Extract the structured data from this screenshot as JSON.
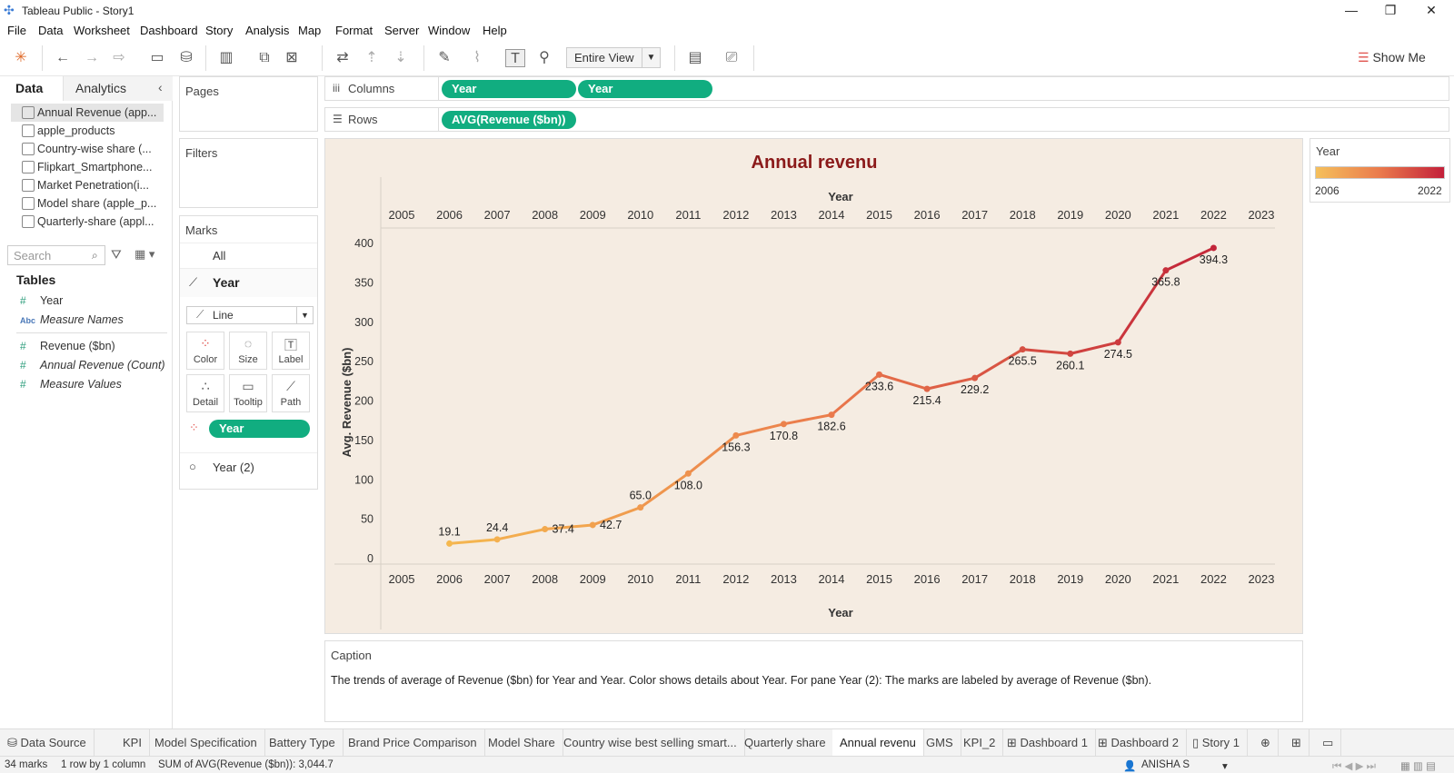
{
  "window": {
    "title": "Tableau Public - Story1",
    "minimize": "—",
    "maximize": "❐",
    "close": "✕"
  },
  "menu": [
    "File",
    "Data",
    "Worksheet",
    "Dashboard",
    "Story",
    "Analysis",
    "Map",
    "Format",
    "Server",
    "Window",
    "Help"
  ],
  "toolbar": {
    "fit": "Entire View",
    "show_me": "Show Me"
  },
  "data_pane": {
    "tab_data": "Data",
    "tab_analytics": "Analytics",
    "sources": [
      "Annual Revenue (app...",
      "apple_products",
      "Country-wise share (...",
      "Flipkart_Smartphone...",
      "Market Penetration(i...",
      "Model share (apple_p...",
      "Quarterly-share (appl..."
    ],
    "search_placeholder": "Search",
    "tables_label": "Tables",
    "fields": [
      {
        "icon": "#",
        "name": "Year",
        "italic": false
      },
      {
        "icon": "Abc",
        "name": "Measure Names",
        "italic": true
      },
      {
        "icon": "#",
        "name": "Revenue ($bn)",
        "italic": false
      },
      {
        "icon": "#",
        "name": "Annual Revenue (Count)",
        "italic": true
      },
      {
        "icon": "#",
        "name": "Measure Values",
        "italic": true
      }
    ]
  },
  "shelves": {
    "pages": "Pages",
    "filters": "Filters",
    "columns_label": "Columns",
    "rows_label": "Rows",
    "columns_pills": [
      "Year",
      "Year"
    ],
    "rows_pill": "AVG(Revenue ($bn))"
  },
  "marks": {
    "title": "Marks",
    "all": "All",
    "year": "Year",
    "mark_type": "Line",
    "buttons": [
      "Color",
      "Size",
      "Label",
      "Detail",
      "Tooltip",
      "Path"
    ],
    "color_pill": "Year",
    "year2": "Year (2)"
  },
  "legend": {
    "title": "Year",
    "min": "2006",
    "max": "2022",
    "color_low": "#f5c05c",
    "color_high": "#c3203a"
  },
  "chart_data": {
    "type": "line",
    "title": "Annual revenu",
    "xlabel": "Year",
    "ylabel": "Avg. Revenue ($bn)",
    "x_ticks": [
      "2005",
      "2006",
      "2007",
      "2008",
      "2009",
      "2010",
      "2011",
      "2012",
      "2013",
      "2014",
      "2015",
      "2016",
      "2017",
      "2018",
      "2019",
      "2020",
      "2021",
      "2022",
      "2023"
    ],
    "y_ticks": [
      0,
      50,
      100,
      150,
      200,
      250,
      300,
      350,
      400
    ],
    "ylim": [
      0,
      400
    ],
    "x": [
      2006,
      2007,
      2008,
      2009,
      2010,
      2011,
      2012,
      2013,
      2014,
      2015,
      2016,
      2017,
      2018,
      2019,
      2020,
      2021,
      2022
    ],
    "values": [
      19.1,
      24.4,
      37.4,
      42.7,
      65.0,
      108.0,
      156.3,
      170.8,
      182.6,
      233.6,
      215.4,
      229.2,
      265.5,
      260.1,
      274.5,
      365.8,
      394.3
    ],
    "labels": [
      "19.1",
      "24.4",
      "37.4",
      "42.7",
      "65.0",
      "108.0",
      "156.3",
      "170.8",
      "182.6",
      "233.6",
      "215.4",
      "229.2",
      "265.5",
      "260.1",
      "274.5",
      "365.8",
      "394.3"
    ],
    "color_low": "#f5b84f",
    "color_high": "#c22539"
  },
  "caption": {
    "title": "Caption",
    "text": "The trends of average of Revenue ($bn) for Year and Year.  Color shows details about Year.  For pane Year (2):  The marks are labeled by average of Revenue ($bn)."
  },
  "sheet_tabs": [
    "Data Source",
    "KPI",
    "Model Specification",
    "Battery Type",
    "Brand Price Comparison",
    "Model Share",
    "Country wise best selling smart...",
    "Quarterly share",
    "Annual revenu",
    "GMS",
    "KPI_2",
    "Dashboard 1",
    "Dashboard 2",
    "Story 1"
  ],
  "active_tab": "Annual revenu",
  "status": {
    "marks": "34 marks",
    "dims": "1 row by 1 column",
    "sum": "SUM of AVG(Revenue ($bn)): 3,044.7",
    "user": "ANISHA S"
  }
}
